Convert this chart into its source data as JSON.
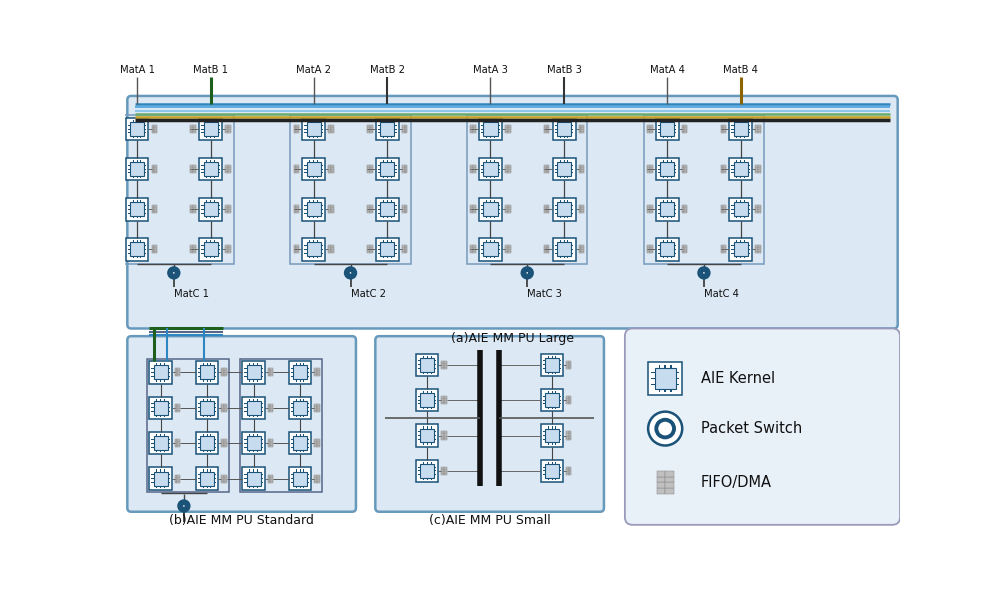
{
  "bg_color": "#dce9f5",
  "white": "#ffffff",
  "blue_dark": "#1a5278",
  "blue_med": "#2e86c1",
  "green_dark": "#1e5f1e",
  "yellow_dark": "#8a6500",
  "black": "#111111",
  "gray": "#888888",
  "light_gray": "#cccccc",
  "legend_bg": "#e8f0f8",
  "panel_a_label": "(a)AIE MM PU Large",
  "panel_b_label": "(b)AIE MM PU Standard",
  "panel_c_label": "(c)AIE MM PU Small",
  "legend_items": [
    "AIE Kernel",
    "Packet Switch",
    "FIFO/DMA"
  ],
  "matA_labels": [
    "MatA 1",
    "MatA 2",
    "MatA 3",
    "MatA 4"
  ],
  "matB_labels": [
    "MatB 1",
    "MatB 2",
    "MatB 3",
    "MatB 4"
  ],
  "matC_labels": [
    "MatC 1",
    "MatC 2",
    "MatC 3",
    "MatC 4"
  ],
  "bus_colors": [
    "#2e86c1",
    "#5dade2",
    "#85c1e9",
    "#6aaa6a",
    "#c8a020",
    "#222222"
  ],
  "bus_lws": [
    1.8,
    1.5,
    1.3,
    1.8,
    1.8,
    2.5
  ]
}
